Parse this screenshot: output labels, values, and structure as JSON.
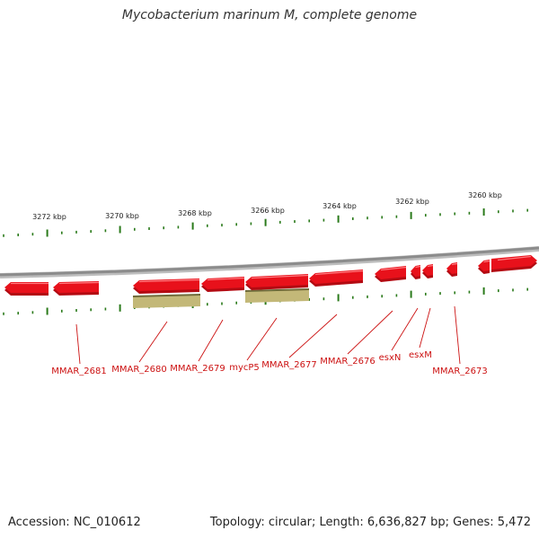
{
  "title": "Mycobacterium marinum M, complete genome",
  "accession": "Accession: NC_010612",
  "summary": "Topology: circular; Length: 6,636,827 bp; Genes: 5,472",
  "colors": {
    "gene": "#e8111b",
    "gene_side": "#b30a12",
    "feature": "#c3b878",
    "feature_edge": "#6f6a3a",
    "backbone": "#8c8c8c",
    "tick": "#2a7a1a",
    "label": "#cc1111"
  },
  "scale_labels": [
    "3272 kbp",
    "3270 kbp",
    "3268 kbp",
    "3266 kbp",
    "3264 kbp",
    "3262 kbp",
    "3260 kbp"
  ],
  "gene_labels": [
    "MMAR_2681",
    "MMAR_2680",
    "MMAR_2679",
    "mycP5",
    "MMAR_2677",
    "MMAR_2676",
    "esxN",
    "esxM",
    "MMAR_2673"
  ]
}
